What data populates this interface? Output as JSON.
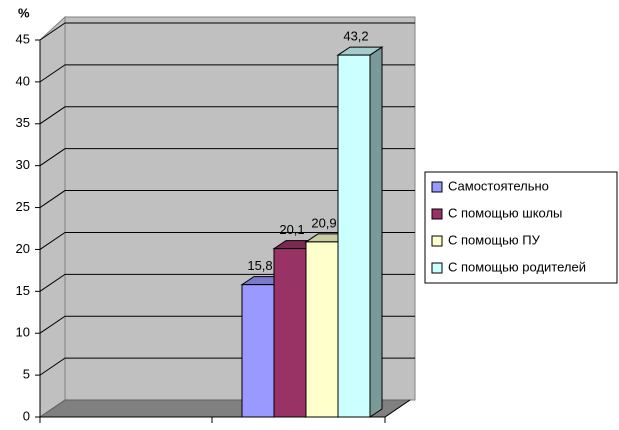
{
  "chart_data": {
    "type": "bar",
    "y_label": "%",
    "categories": [
      null
    ],
    "series": [
      {
        "name": "Самостоятельно",
        "color": "#9999ff",
        "values": [
          15.8
        ],
        "value_labels": [
          "15,8"
        ]
      },
      {
        "name": "С помощью школы",
        "color": "#993366",
        "values": [
          20.1
        ],
        "value_labels": [
          "20,1"
        ]
      },
      {
        "name": "С помощью ПУ",
        "color": "#ffffcc",
        "values": [
          20.9
        ],
        "value_labels": [
          "20,9"
        ]
      },
      {
        "name": "С помощью родителей",
        "color": "#ccffff",
        "values": [
          43.2
        ],
        "value_labels": [
          "43,2"
        ]
      }
    ],
    "ylim": [
      0,
      45
    ],
    "yticks": [
      0,
      5,
      10,
      15,
      20,
      25,
      30,
      35,
      40,
      45
    ],
    "grid": true,
    "legend": "right"
  }
}
